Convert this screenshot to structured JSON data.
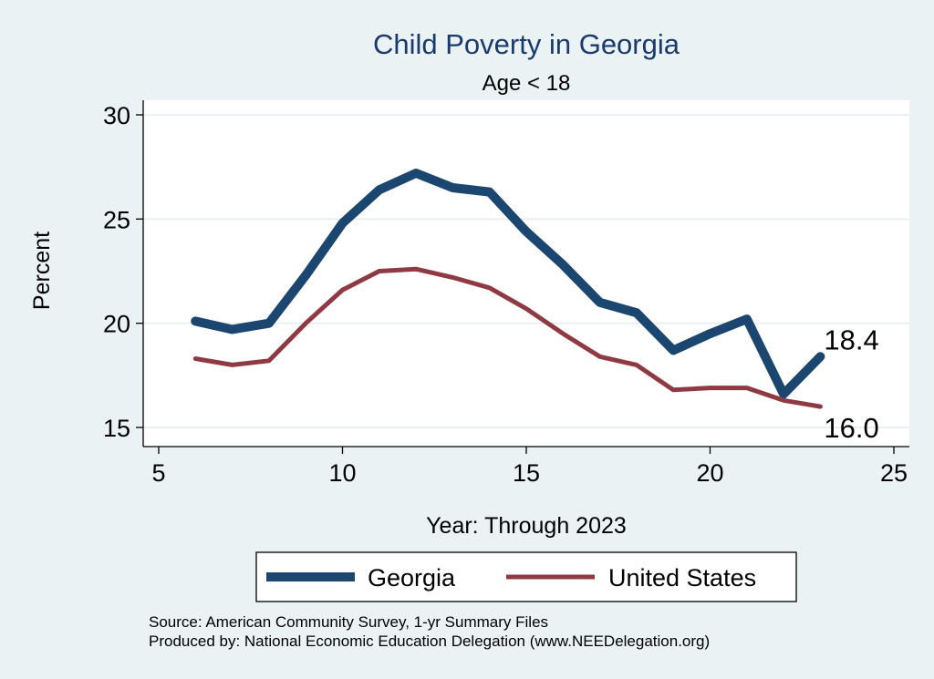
{
  "chart_data": {
    "type": "line",
    "title": "Child Poverty in Georgia",
    "subtitle": "Age < 18",
    "xlabel": "Year: Through 2023",
    "ylabel": "Percent",
    "xlim": [
      5,
      25
    ],
    "ylim": [
      15,
      30
    ],
    "xticks": [
      5,
      10,
      15,
      20,
      25
    ],
    "yticks": [
      15,
      20,
      25,
      30
    ],
    "grid": true,
    "legend_position": "bottom",
    "series": [
      {
        "name": "Georgia",
        "color": "#1a4670",
        "x": [
          6,
          7,
          8,
          9,
          10,
          11,
          12,
          13,
          14,
          15,
          16,
          17,
          18,
          19,
          20,
          21,
          22,
          23
        ],
        "y": [
          20.1,
          19.7,
          20.0,
          22.3,
          24.8,
          26.4,
          27.2,
          26.5,
          26.3,
          24.4,
          22.8,
          21.0,
          20.5,
          18.7,
          19.5,
          20.2,
          16.6,
          18.4
        ],
        "end_label": "18.4"
      },
      {
        "name": "United States",
        "color": "#8f3a42",
        "x": [
          6,
          7,
          8,
          9,
          10,
          11,
          12,
          13,
          14,
          15,
          16,
          17,
          18,
          19,
          20,
          21,
          22,
          23
        ],
        "y": [
          18.3,
          18.0,
          18.2,
          20.0,
          21.6,
          22.5,
          22.6,
          22.2,
          21.7,
          20.7,
          19.5,
          18.4,
          18.0,
          16.8,
          16.9,
          16.9,
          16.3,
          16.0
        ],
        "end_label": "16.0"
      }
    ],
    "notes": [
      "Source: American Community Survey, 1-yr Summary Files",
      "Produced by: National Economic Education Delegation (www.NEEDelegation.org)"
    ]
  }
}
